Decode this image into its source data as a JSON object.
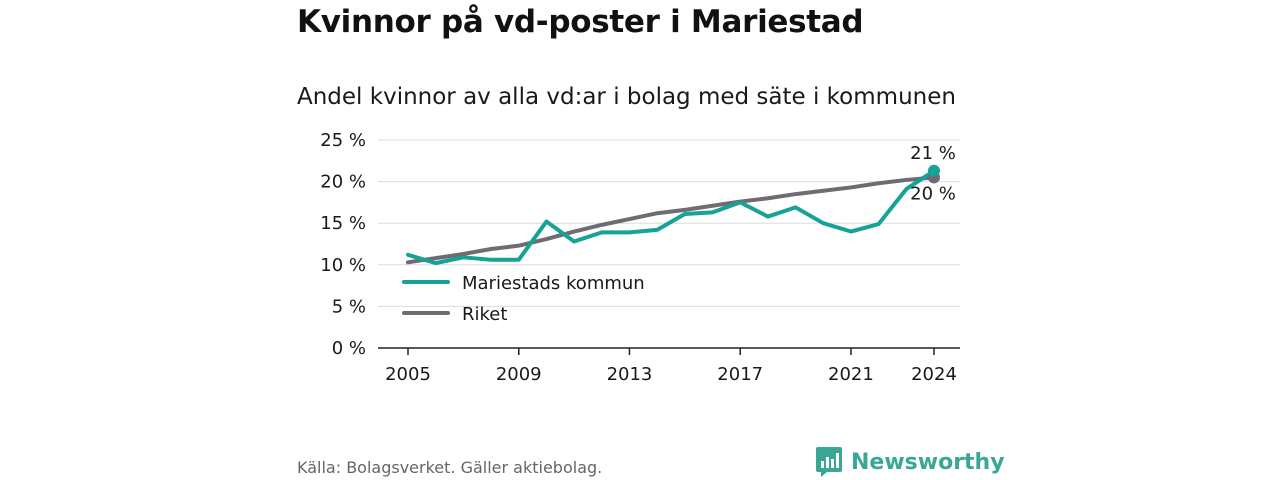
{
  "title": "Kvinnor på vd-poster i Mariestad",
  "subtitle": "Andel kvinnor av alla vd:ar i bolag med säte i kommunen",
  "source": "Källa: Bolagsverket. Gäller aktiebolag.",
  "brand": "Newsworthy",
  "colors": {
    "mariestad": "#16a296",
    "riket": "#6e6b73",
    "grid": "#dcdcdc",
    "axis": "#222222",
    "brand": "#3aa796"
  },
  "chart_data": {
    "type": "line",
    "x": [
      2005,
      2006,
      2007,
      2008,
      2009,
      2010,
      2011,
      2012,
      2013,
      2014,
      2015,
      2016,
      2017,
      2018,
      2019,
      2020,
      2021,
      2022,
      2023,
      2024
    ],
    "xticks": [
      "2005",
      "2009",
      "2013",
      "2017",
      "2021",
      "2024"
    ],
    "yticks": [
      "0 %",
      "5 %",
      "10 %",
      "15 %",
      "20 %",
      "25 %"
    ],
    "ylim": [
      0,
      25
    ],
    "grid": true,
    "legend_position": "bottom-left",
    "series": [
      {
        "name": "Mariestads kommun",
        "values": [
          11.2,
          10.2,
          10.9,
          10.6,
          10.6,
          15.2,
          12.8,
          13.9,
          13.9,
          14.2,
          16.1,
          16.3,
          17.5,
          15.8,
          16.9,
          15.0,
          14.0,
          14.9,
          19.1,
          21.3
        ],
        "end_label": "21 %"
      },
      {
        "name": "Riket",
        "values": [
          10.3,
          10.8,
          11.3,
          11.9,
          12.3,
          13.1,
          14.0,
          14.8,
          15.5,
          16.2,
          16.6,
          17.1,
          17.6,
          18.0,
          18.5,
          18.9,
          19.3,
          19.8,
          20.2,
          20.5
        ],
        "end_label": "20 %"
      }
    ]
  }
}
